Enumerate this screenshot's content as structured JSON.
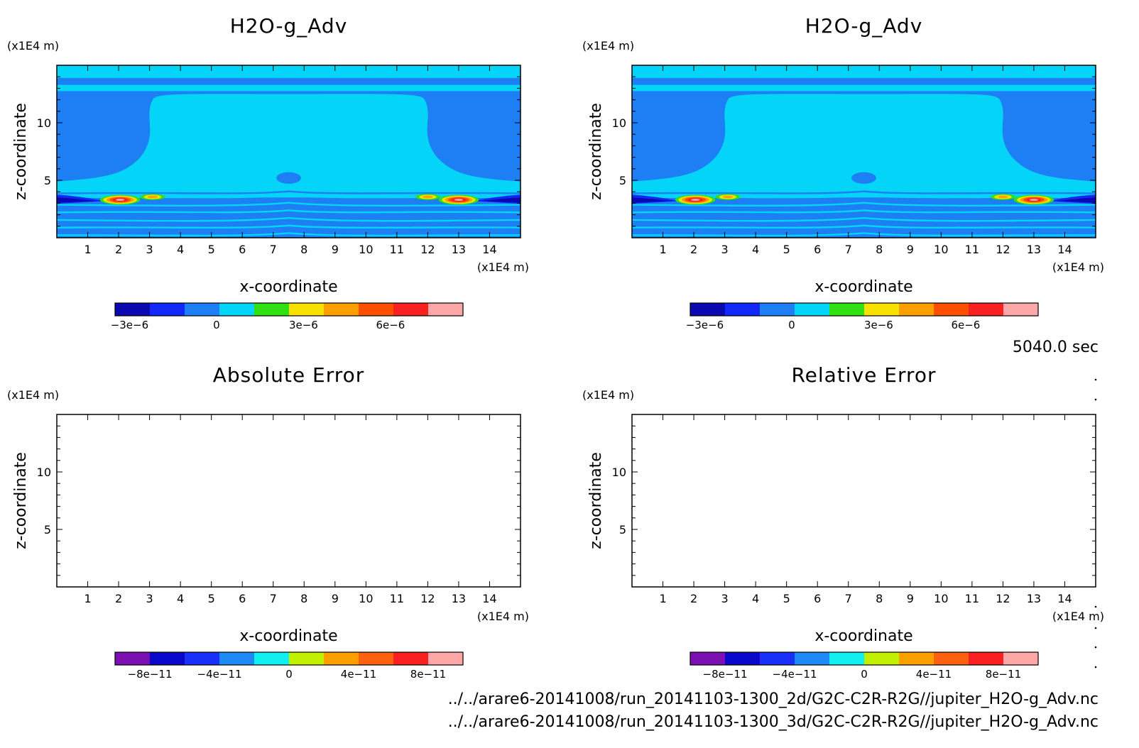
{
  "time_label": "5040.0 sec",
  "file_paths": [
    "../../arare6-20141008/run_20141103-1300_2d/G2C-C2R-R2G//jupiter_H2O-g_Adv.nc",
    "../../arare6-20141008/run_20141103-1300_3d/G2C-C2R-R2G//jupiter_H2O-g_Adv.nc"
  ],
  "chart_data": [
    {
      "type": "heatmap",
      "title": "H2O-g_Adv",
      "xlabel": "x-coordinate",
      "ylabel": "z-coordinate",
      "x_unit": "(x1E4 m)",
      "y_unit": "(x1E4 m)",
      "xlim": [
        0,
        15
      ],
      "ylim": [
        0,
        15
      ],
      "x_ticks": [
        1,
        2,
        3,
        4,
        5,
        6,
        7,
        8,
        9,
        10,
        11,
        12,
        13,
        14
      ],
      "y_ticks": [
        5,
        10
      ],
      "colorbar": {
        "min": -3.5e-06,
        "max": 8.5e-06,
        "colors": [
          "#0a08b0",
          "#1228f8",
          "#1e7ef4",
          "#04d4f8",
          "#30e010",
          "#f8e000",
          "#fca000",
          "#fc5000",
          "#f82020",
          "#fca8a8"
        ],
        "tick_values": [
          -3e-06,
          0,
          3e-06,
          6e-06
        ],
        "tick_labels": [
          "−3e−6",
          "0",
          "3e−6",
          "6e−6"
        ]
      },
      "hotspots": [
        {
          "x": 2.05,
          "z": 3.3,
          "rx": 0.65,
          "rz": 0.42,
          "levels": [
            4,
            5,
            6,
            7,
            8,
            9
          ]
        },
        {
          "x": 3.1,
          "z": 3.55,
          "rx": 0.4,
          "rz": 0.26,
          "levels": [
            4,
            5,
            6
          ]
        },
        {
          "x": 13.0,
          "z": 3.3,
          "rx": 0.65,
          "rz": 0.42,
          "levels": [
            4,
            5,
            6,
            7,
            8,
            9
          ]
        },
        {
          "x": 12.0,
          "z": 3.55,
          "rx": 0.4,
          "rz": 0.26,
          "levels": [
            4,
            5,
            6
          ]
        }
      ]
    },
    {
      "type": "heatmap",
      "title": "H2O-g_Adv",
      "xlabel": "x-coordinate",
      "ylabel": "z-coordinate",
      "x_unit": "(x1E4 m)",
      "y_unit": "(x1E4 m)",
      "xlim": [
        0,
        15
      ],
      "ylim": [
        0,
        15
      ],
      "x_ticks": [
        1,
        2,
        3,
        4,
        5,
        6,
        7,
        8,
        9,
        10,
        11,
        12,
        13,
        14
      ],
      "y_ticks": [
        5,
        10
      ],
      "colorbar": {
        "min": -3.5e-06,
        "max": 8.5e-06,
        "colors": [
          "#0a08b0",
          "#1228f8",
          "#1e7ef4",
          "#04d4f8",
          "#30e010",
          "#f8e000",
          "#fca000",
          "#fc5000",
          "#f82020",
          "#fca8a8"
        ],
        "tick_values": [
          -3e-06,
          0,
          3e-06,
          6e-06
        ],
        "tick_labels": [
          "−3e−6",
          "0",
          "3e−6",
          "6e−6"
        ]
      },
      "hotspots": [
        {
          "x": 2.05,
          "z": 3.3,
          "rx": 0.65,
          "rz": 0.42,
          "levels": [
            4,
            5,
            6,
            7,
            8,
            9
          ]
        },
        {
          "x": 3.1,
          "z": 3.55,
          "rx": 0.4,
          "rz": 0.26,
          "levels": [
            4,
            5,
            6
          ]
        },
        {
          "x": 13.0,
          "z": 3.3,
          "rx": 0.65,
          "rz": 0.42,
          "levels": [
            4,
            5,
            6,
            7,
            8,
            9
          ]
        },
        {
          "x": 12.0,
          "z": 3.55,
          "rx": 0.4,
          "rz": 0.26,
          "levels": [
            4,
            5,
            6
          ]
        }
      ]
    },
    {
      "type": "heatmap",
      "title": "Absolute Error",
      "xlabel": "x-coordinate",
      "ylabel": "z-coordinate",
      "x_unit": "(x1E4 m)",
      "y_unit": "(x1E4 m)",
      "xlim": [
        0,
        15
      ],
      "ylim": [
        0,
        15
      ],
      "x_ticks": [
        1,
        2,
        3,
        4,
        5,
        6,
        7,
        8,
        9,
        10,
        11,
        12,
        13,
        14
      ],
      "y_ticks": [
        5,
        10
      ],
      "values": "all zero (blank field)",
      "colorbar": {
        "min": -1e-10,
        "max": 1e-10,
        "colors": [
          "#7a10b0",
          "#0a08c8",
          "#1a30f8",
          "#1e88f4",
          "#10f0f0",
          "#c0f000",
          "#fca000",
          "#fc6010",
          "#f82020",
          "#fca8a8"
        ],
        "tick_values": [
          -8e-11,
          -4e-11,
          0,
          4e-11,
          8e-11
        ],
        "tick_labels": [
          "−8e−11",
          "−4e−11",
          "0",
          "4e−11",
          "8e−11"
        ]
      }
    },
    {
      "type": "heatmap",
      "title": "Relative Error",
      "xlabel": "x-coordinate",
      "ylabel": "z-coordinate",
      "x_unit": "(x1E4 m)",
      "y_unit": "(x1E4 m)",
      "xlim": [
        0,
        15
      ],
      "ylim": [
        0,
        15
      ],
      "x_ticks": [
        1,
        2,
        3,
        4,
        5,
        6,
        7,
        8,
        9,
        10,
        11,
        12,
        13,
        14
      ],
      "y_ticks": [
        5,
        10
      ],
      "values": "all zero (blank field)",
      "colorbar": {
        "min": -1e-10,
        "max": 1e-10,
        "colors": [
          "#7a10b0",
          "#0a08c8",
          "#1a30f8",
          "#1e88f4",
          "#10f0f0",
          "#c0f000",
          "#fca000",
          "#fc6010",
          "#f82020",
          "#fca8a8"
        ],
        "tick_values": [
          -8e-11,
          -4e-11,
          0,
          4e-11,
          8e-11
        ],
        "tick_labels": [
          "−8e−11",
          "−4e−11",
          "0",
          "4e−11",
          "8e−11"
        ]
      }
    }
  ]
}
